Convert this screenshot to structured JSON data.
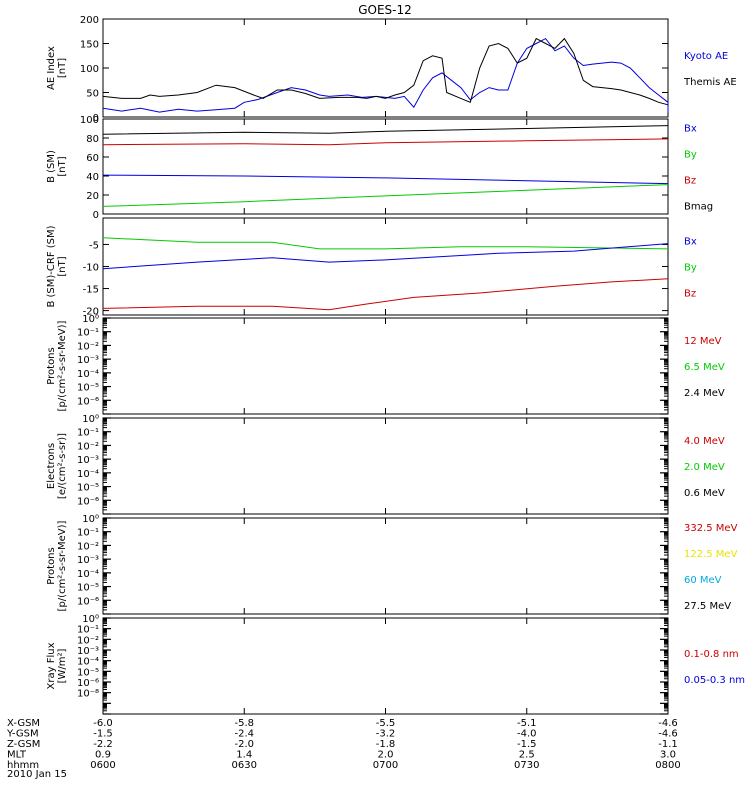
{
  "title": "GOES-12",
  "colors": {
    "black": "#000000",
    "blue": "#0000dd",
    "red": "#cc0000",
    "green": "#00cc00",
    "yellow": "#e6e600",
    "cyan": "#00aadd"
  },
  "footer": {
    "rows": [
      {
        "label": "X-GSM",
        "values": [
          "-6.0",
          "-5.8",
          "-5.5",
          "-5.1",
          "-4.6"
        ]
      },
      {
        "label": "Y-GSM",
        "values": [
          "-1.5",
          "-2.4",
          "-3.2",
          "-4.0",
          "-4.6"
        ]
      },
      {
        "label": "Z-GSM",
        "values": [
          "-2.2",
          "-2.0",
          "-1.8",
          "-1.5",
          "-1.1"
        ]
      },
      {
        "label": "MLT",
        "values": [
          "0.9",
          "1.4",
          "2.0",
          "2.5",
          "3.0"
        ]
      },
      {
        "label": "hhmm",
        "values": [
          "0600",
          "0630",
          "0700",
          "0730",
          "0800"
        ]
      }
    ],
    "date": "2010 Jan 15"
  },
  "chart_data": [
    {
      "type": "line",
      "ylabel": [
        "AE Index",
        "[nT]"
      ],
      "ylim": [
        0,
        200
      ],
      "yticks": [
        "0",
        "50",
        "100",
        "150",
        "200"
      ],
      "x": [
        "0600",
        "0630",
        "0700",
        "0730",
        "0800"
      ],
      "legend": [
        {
          "name": "Kyoto AE",
          "color": "blue"
        },
        {
          "name": "Themis AE",
          "color": "black"
        }
      ],
      "series": [
        {
          "name": "Kyoto AE",
          "color": "blue",
          "points": [
            [
              0,
              18
            ],
            [
              4,
              12
            ],
            [
              8,
              18
            ],
            [
              12,
              10
            ],
            [
              16,
              16
            ],
            [
              20,
              12
            ],
            [
              24,
              15
            ],
            [
              28,
              18
            ],
            [
              30,
              30
            ],
            [
              33,
              36
            ],
            [
              37,
              50
            ],
            [
              40,
              60
            ],
            [
              43,
              55
            ],
            [
              46,
              45
            ],
            [
              48,
              42
            ],
            [
              52,
              45
            ],
            [
              55,
              40
            ],
            [
              58,
              42
            ],
            [
              60,
              40
            ],
            [
              62,
              38
            ],
            [
              64,
              42
            ],
            [
              66,
              20
            ],
            [
              68,
              55
            ],
            [
              70,
              80
            ],
            [
              72,
              90
            ],
            [
              74,
              75
            ],
            [
              76,
              60
            ],
            [
              78,
              35
            ],
            [
              80,
              50
            ],
            [
              82,
              60
            ],
            [
              84,
              55
            ],
            [
              86,
              55
            ],
            [
              88,
              110
            ],
            [
              90,
              140
            ],
            [
              92,
              150
            ],
            [
              94,
              160
            ],
            [
              96,
              135
            ],
            [
              98,
              145
            ],
            [
              100,
              120
            ],
            [
              102,
              105
            ],
            [
              104,
              108
            ],
            [
              106,
              110
            ],
            [
              108,
              112
            ],
            [
              110,
              110
            ],
            [
              112,
              100
            ],
            [
              114,
              80
            ],
            [
              116,
              60
            ],
            [
              118,
              45
            ],
            [
              120,
              30
            ],
            [
              120,
              10
            ]
          ]
        },
        {
          "name": "Themis AE",
          "color": "black",
          "points": [
            [
              0,
              42
            ],
            [
              4,
              38
            ],
            [
              8,
              38
            ],
            [
              10,
              45
            ],
            [
              12,
              42
            ],
            [
              16,
              45
            ],
            [
              20,
              50
            ],
            [
              24,
              65
            ],
            [
              28,
              60
            ],
            [
              32,
              45
            ],
            [
              34,
              38
            ],
            [
              37,
              55
            ],
            [
              40,
              55
            ],
            [
              43,
              48
            ],
            [
              46,
              38
            ],
            [
              50,
              40
            ],
            [
              54,
              40
            ],
            [
              56,
              38
            ],
            [
              58,
              42
            ],
            [
              60,
              38
            ],
            [
              62,
              45
            ],
            [
              64,
              50
            ],
            [
              66,
              65
            ],
            [
              68,
              115
            ],
            [
              70,
              125
            ],
            [
              72,
              120
            ],
            [
              73,
              50
            ],
            [
              76,
              38
            ],
            [
              78,
              30
            ],
            [
              80,
              100
            ],
            [
              82,
              145
            ],
            [
              84,
              150
            ],
            [
              86,
              140
            ],
            [
              88,
              110
            ],
            [
              90,
              120
            ],
            [
              92,
              160
            ],
            [
              94,
              150
            ],
            [
              96,
              140
            ],
            [
              98,
              160
            ],
            [
              100,
              130
            ],
            [
              102,
              75
            ],
            [
              104,
              62
            ],
            [
              106,
              60
            ],
            [
              108,
              58
            ],
            [
              110,
              55
            ],
            [
              112,
              50
            ],
            [
              114,
              45
            ],
            [
              116,
              38
            ],
            [
              118,
              30
            ],
            [
              120,
              25
            ]
          ]
        }
      ]
    },
    {
      "type": "line",
      "ylabel": [
        "B (SM)",
        "[nT]"
      ],
      "ylim": [
        0,
        100
      ],
      "yticks": [
        "0",
        "20",
        "40",
        "60",
        "80",
        "100"
      ],
      "x": [
        "0600",
        "0630",
        "0700",
        "0730",
        "0800"
      ],
      "legend": [
        {
          "name": "Bx",
          "color": "blue"
        },
        {
          "name": "By",
          "color": "green"
        },
        {
          "name": "Bz",
          "color": "red"
        },
        {
          "name": "Bmag",
          "color": "black"
        }
      ],
      "series": [
        {
          "name": "Bmag",
          "color": "black",
          "points": [
            [
              0,
              84
            ],
            [
              30,
              86
            ],
            [
              48,
              85
            ],
            [
              60,
              87
            ],
            [
              90,
              90
            ],
            [
              120,
              93
            ]
          ]
        },
        {
          "name": "Bz",
          "color": "red",
          "points": [
            [
              0,
              73
            ],
            [
              30,
              74
            ],
            [
              48,
              73
            ],
            [
              60,
              75
            ],
            [
              90,
              77
            ],
            [
              120,
              79
            ]
          ]
        },
        {
          "name": "Bx",
          "color": "blue",
          "points": [
            [
              0,
              41
            ],
            [
              30,
              40
            ],
            [
              60,
              38
            ],
            [
              90,
              35
            ],
            [
              120,
              32
            ]
          ]
        },
        {
          "name": "By",
          "color": "green",
          "points": [
            [
              0,
              8
            ],
            [
              30,
              13
            ],
            [
              60,
              19
            ],
            [
              90,
              25
            ],
            [
              120,
              31
            ]
          ]
        }
      ]
    },
    {
      "type": "line",
      "ylabel": [
        "B (SM)-CRF (SM)",
        "[nT]"
      ],
      "ylim": [
        -21,
        1
      ],
      "yticks": [
        "-20",
        "-15",
        "-10",
        "-5"
      ],
      "x": [
        "0600",
        "0630",
        "0700",
        "0730",
        "0800"
      ],
      "legend": [
        {
          "name": "Bx",
          "color": "blue"
        },
        {
          "name": "By",
          "color": "green"
        },
        {
          "name": "Bz",
          "color": "red"
        }
      ],
      "series": [
        {
          "name": "By",
          "color": "green",
          "points": [
            [
              0,
              -3.5
            ],
            [
              10,
              -4
            ],
            [
              20,
              -4.5
            ],
            [
              36,
              -4.5
            ],
            [
              46,
              -6
            ],
            [
              60,
              -6
            ],
            [
              76,
              -5.5
            ],
            [
              90,
              -5.5
            ],
            [
              120,
              -6
            ]
          ]
        },
        {
          "name": "Bx",
          "color": "blue",
          "points": [
            [
              0,
              -10.5
            ],
            [
              20,
              -9
            ],
            [
              36,
              -8
            ],
            [
              48,
              -9
            ],
            [
              60,
              -8.5
            ],
            [
              84,
              -7
            ],
            [
              100,
              -6.5
            ],
            [
              120,
              -4.8
            ]
          ]
        },
        {
          "name": "Bz",
          "color": "red",
          "points": [
            [
              0,
              -19.5
            ],
            [
              20,
              -19
            ],
            [
              36,
              -19
            ],
            [
              48,
              -19.8
            ],
            [
              56,
              -18.5
            ],
            [
              66,
              -17
            ],
            [
              80,
              -16
            ],
            [
              96,
              -14.5
            ],
            [
              108,
              -13.5
            ],
            [
              120,
              -12.8
            ]
          ]
        }
      ]
    },
    {
      "type": "line",
      "ylabel": [
        "Protons",
        "[p/(cm²-s-sr-MeV)]"
      ],
      "log": true,
      "ylim": [
        "1e-7",
        "1e0"
      ],
      "yticks": [
        "10⁻⁶",
        "10⁻⁵",
        "10⁻⁴",
        "10⁻³",
        "10⁻²",
        "10⁻¹",
        "10⁰"
      ],
      "legend": [
        {
          "name": "12 MeV",
          "color": "red"
        },
        {
          "name": "6.5 MeV",
          "color": "green"
        },
        {
          "name": "2.4 MeV",
          "color": "black"
        }
      ],
      "series": []
    },
    {
      "type": "line",
      "ylabel": [
        "Electrons",
        "[e/(cm²-s-sr)]"
      ],
      "log": true,
      "ylim": [
        "1e-7",
        "1e0"
      ],
      "yticks": [
        "10⁻⁶",
        "10⁻⁵",
        "10⁻⁴",
        "10⁻³",
        "10⁻²",
        "10⁻¹",
        "10⁰"
      ],
      "legend": [
        {
          "name": "4.0 MeV",
          "color": "red"
        },
        {
          "name": "2.0 MeV",
          "color": "green"
        },
        {
          "name": "0.6 MeV",
          "color": "black"
        }
      ],
      "series": []
    },
    {
      "type": "line",
      "ylabel": [
        "Protons",
        "[p/(cm²-s-sr-MeV)]"
      ],
      "log": true,
      "ylim": [
        "1e-7",
        "1e0"
      ],
      "yticks": [
        "10⁻⁶",
        "10⁻⁵",
        "10⁻⁴",
        "10⁻³",
        "10⁻²",
        "10⁻¹",
        "10⁰"
      ],
      "legend": [
        {
          "name": "332.5 MeV",
          "color": "red"
        },
        {
          "name": "122.5 MeV",
          "color": "yellow"
        },
        {
          "name": "60 MeV",
          "color": "cyan"
        },
        {
          "name": "27.5 MeV",
          "color": "black"
        }
      ],
      "series": []
    },
    {
      "type": "line",
      "ylabel": [
        "Xray Flux",
        "[W/m²]"
      ],
      "log": true,
      "ylim": [
        "1e-9",
        "1e0"
      ],
      "yticks": [
        "10⁻⁸",
        "10⁻⁶",
        "10⁻⁵",
        "10⁻⁴",
        "10⁻³",
        "10⁻²",
        "10⁻¹",
        "10⁰"
      ],
      "legend": [
        {
          "name": "0.1-0.8 nm",
          "color": "red"
        },
        {
          "name": "0.05-0.3 nm",
          "color": "blue"
        }
      ],
      "series": []
    }
  ]
}
